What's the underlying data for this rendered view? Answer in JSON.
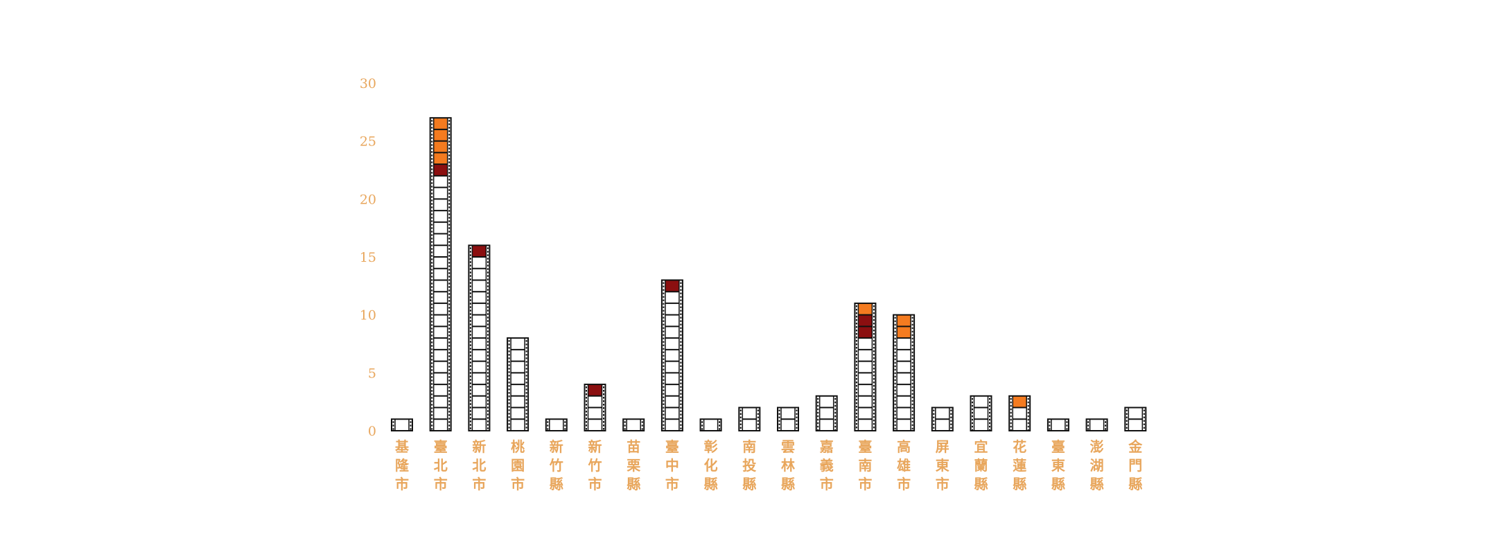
{
  "chart_data": {
    "type": "bar",
    "title": "",
    "xlabel": "",
    "ylabel": "",
    "ylim": [
      0,
      30
    ],
    "yticks": [
      0,
      5,
      10,
      15,
      20,
      25,
      30
    ],
    "grid": false,
    "legend": "none",
    "categories": [
      "基隆市",
      "臺北市",
      "新北市",
      "桃園市",
      "新竹縣",
      "新竹市",
      "苗栗縣",
      "臺中市",
      "彰化縣",
      "南投縣",
      "雲林縣",
      "嘉義市",
      "臺南市",
      "高雄市",
      "屏東市",
      "宜蘭縣",
      "花蓮縣",
      "臺東縣",
      "澎湖縣",
      "金門縣"
    ],
    "series": [
      {
        "values": [
          1,
          22,
          15,
          8,
          1,
          3,
          1,
          12,
          1,
          2,
          2,
          3,
          8,
          8,
          2,
          3,
          2,
          1,
          1,
          2
        ],
        "color": "#ffffff"
      },
      {
        "values": [
          0,
          1,
          1,
          0,
          0,
          1,
          0,
          1,
          0,
          0,
          0,
          0,
          2,
          0,
          0,
          0,
          0,
          0,
          0,
          0
        ],
        "color": "#8b0f10"
      },
      {
        "values": [
          0,
          4,
          0,
          0,
          0,
          0,
          0,
          0,
          0,
          0,
          0,
          0,
          1,
          2,
          0,
          0,
          1,
          0,
          0,
          0
        ],
        "color": "#f47b20"
      }
    ],
    "colors": {
      "tick_text": "#e8a65c",
      "film": "#111111"
    }
  }
}
